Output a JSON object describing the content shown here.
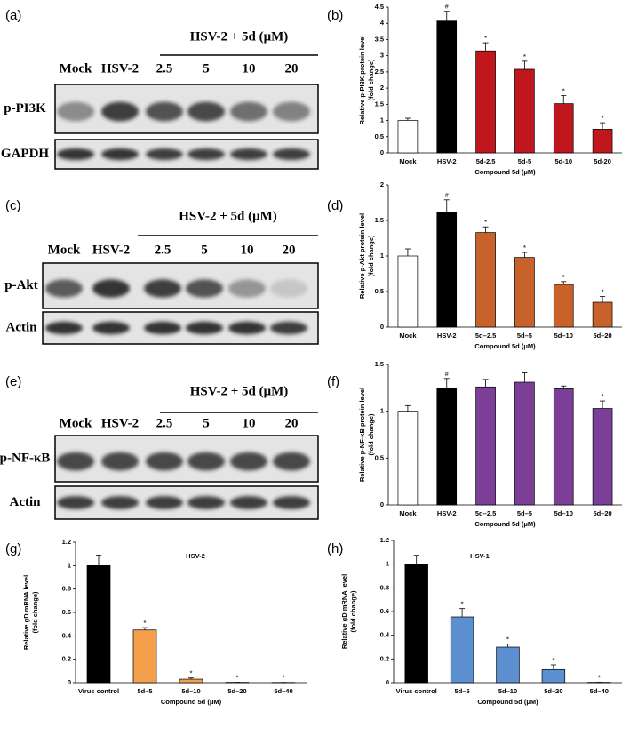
{
  "blots": [
    {
      "panel": "(a)",
      "group_label": "HSV-2 + 5d (μM)",
      "lanes": [
        "Mock",
        "HSV-2",
        "2.5",
        "5",
        "10",
        "20"
      ],
      "rows": [
        "p-PI3K",
        "GAPDH"
      ]
    },
    {
      "panel": "(c)",
      "group_label": "HSV-2 + 5d (μM)",
      "lanes": [
        "Mock",
        "HSV-2",
        "2.5",
        "5",
        "10",
        "20"
      ],
      "rows": [
        "p-Akt",
        "Actin"
      ]
    },
    {
      "panel": "(e)",
      "group_label": "HSV-2 + 5d (μM)",
      "lanes": [
        "Mock",
        "HSV-2",
        "2.5",
        "5",
        "10",
        "20"
      ],
      "rows": [
        "p-NF-κB",
        "Actin"
      ]
    }
  ],
  "chart_data": [
    {
      "type": "bar",
      "panel": "(b)",
      "y_label": [
        "Relative p-PI3K protein level",
        "(fold change)"
      ],
      "x_label": "Compound 5d (μM)",
      "categories": [
        "Mock",
        "HSV-2",
        "5d-2.5",
        "5d-5",
        "5d-10",
        "5d-20"
      ],
      "values": [
        1.0,
        4.07,
        3.15,
        2.58,
        1.52,
        0.73
      ],
      "errors": [
        0.07,
        0.3,
        0.25,
        0.25,
        0.25,
        0.2
      ],
      "markers": [
        null,
        "#",
        "*",
        "*",
        "*",
        "*"
      ],
      "colors": [
        "#ffffff",
        "#000000",
        "#c0161e",
        "#c0161e",
        "#c0161e",
        "#c0161e"
      ],
      "ylim": [
        0,
        4.5
      ],
      "yticks": [
        0,
        0.5,
        1,
        1.5,
        2,
        2.5,
        3,
        3.5,
        4,
        4.5
      ]
    },
    {
      "type": "bar",
      "panel": "(d)",
      "y_label": [
        "Relative p-Akt protein level",
        "(fold change)"
      ],
      "x_label": "Compound 5d (μM)",
      "categories": [
        "Mock",
        "HSV-2",
        "5d–2.5",
        "5d–5",
        "5d–10",
        "5d–20"
      ],
      "values": [
        1.0,
        1.62,
        1.33,
        0.98,
        0.6,
        0.35
      ],
      "errors": [
        0.1,
        0.17,
        0.08,
        0.07,
        0.04,
        0.08
      ],
      "markers": [
        null,
        "#",
        "*",
        "*",
        "*",
        "*"
      ],
      "colors": [
        "#ffffff",
        "#000000",
        "#c8612a",
        "#c8612a",
        "#c8612a",
        "#c8612a"
      ],
      "ylim": [
        0,
        2
      ],
      "yticks": [
        0,
        0.5,
        1,
        1.5,
        2
      ]
    },
    {
      "type": "bar",
      "panel": "(f)",
      "y_label": [
        "Relative p-NF-κB protein level",
        "(fold change)"
      ],
      "x_label": "Compound 5d (μM)",
      "categories": [
        "Mock",
        "HSV-2",
        "5d–2.5",
        "5d–5",
        "5d–10",
        "5d–20"
      ],
      "values": [
        1.0,
        1.25,
        1.26,
        1.31,
        1.24,
        1.03
      ],
      "errors": [
        0.06,
        0.1,
        0.08,
        0.1,
        0.03,
        0.08
      ],
      "markers": [
        null,
        "#",
        null,
        null,
        null,
        "*"
      ],
      "colors": [
        "#ffffff",
        "#000000",
        "#7b3f98",
        "#7b3f98",
        "#7b3f98",
        "#7b3f98"
      ],
      "ylim": [
        0,
        1.5
      ],
      "yticks": [
        0,
        0.5,
        1,
        1.5
      ]
    },
    {
      "type": "bar",
      "panel": "(g)",
      "title": "HSV-2",
      "y_label": [
        "Relative gD mRNA level",
        "(fold change)"
      ],
      "x_label": "Compound 5d (μM)",
      "categories": [
        "Virus control",
        "5d–5",
        "5d–10",
        "5d–20",
        "5d–40"
      ],
      "values": [
        1.0,
        0.45,
        0.03,
        0.003,
        0.002
      ],
      "errors": [
        0.09,
        0.02,
        0.01,
        0,
        0
      ],
      "markers": [
        null,
        "*",
        "*",
        "*",
        "*"
      ],
      "colors": [
        "#000000",
        "#f4a04a",
        "#f4a04a",
        "#f4a04a",
        "#f4a04a"
      ],
      "ylim": [
        0,
        1.2
      ],
      "yticks": [
        0,
        0.2,
        0.4,
        0.6,
        0.8,
        1,
        1.2
      ]
    },
    {
      "type": "bar",
      "panel": "(h)",
      "title": "HSV-1",
      "y_label": [
        "Relative gD mRNA level",
        "(fold change)"
      ],
      "x_label": "Compound 5d (μM)",
      "categories": [
        "Virus control",
        "5d–5",
        "5d–10",
        "5d–20",
        "5d–40"
      ],
      "values": [
        1.0,
        0.555,
        0.3,
        0.11,
        0.003
      ],
      "errors": [
        0.075,
        0.07,
        0.025,
        0.04,
        0
      ],
      "markers": [
        null,
        "*",
        "*",
        "*",
        "*"
      ],
      "colors": [
        "#000000",
        "#5b8fd0",
        "#5b8fd0",
        "#5b8fd0",
        "#5b8fd0"
      ],
      "ylim": [
        0,
        1.2
      ],
      "yticks": [
        0,
        0.2,
        0.4,
        0.6,
        0.8,
        1,
        1.2
      ]
    }
  ]
}
